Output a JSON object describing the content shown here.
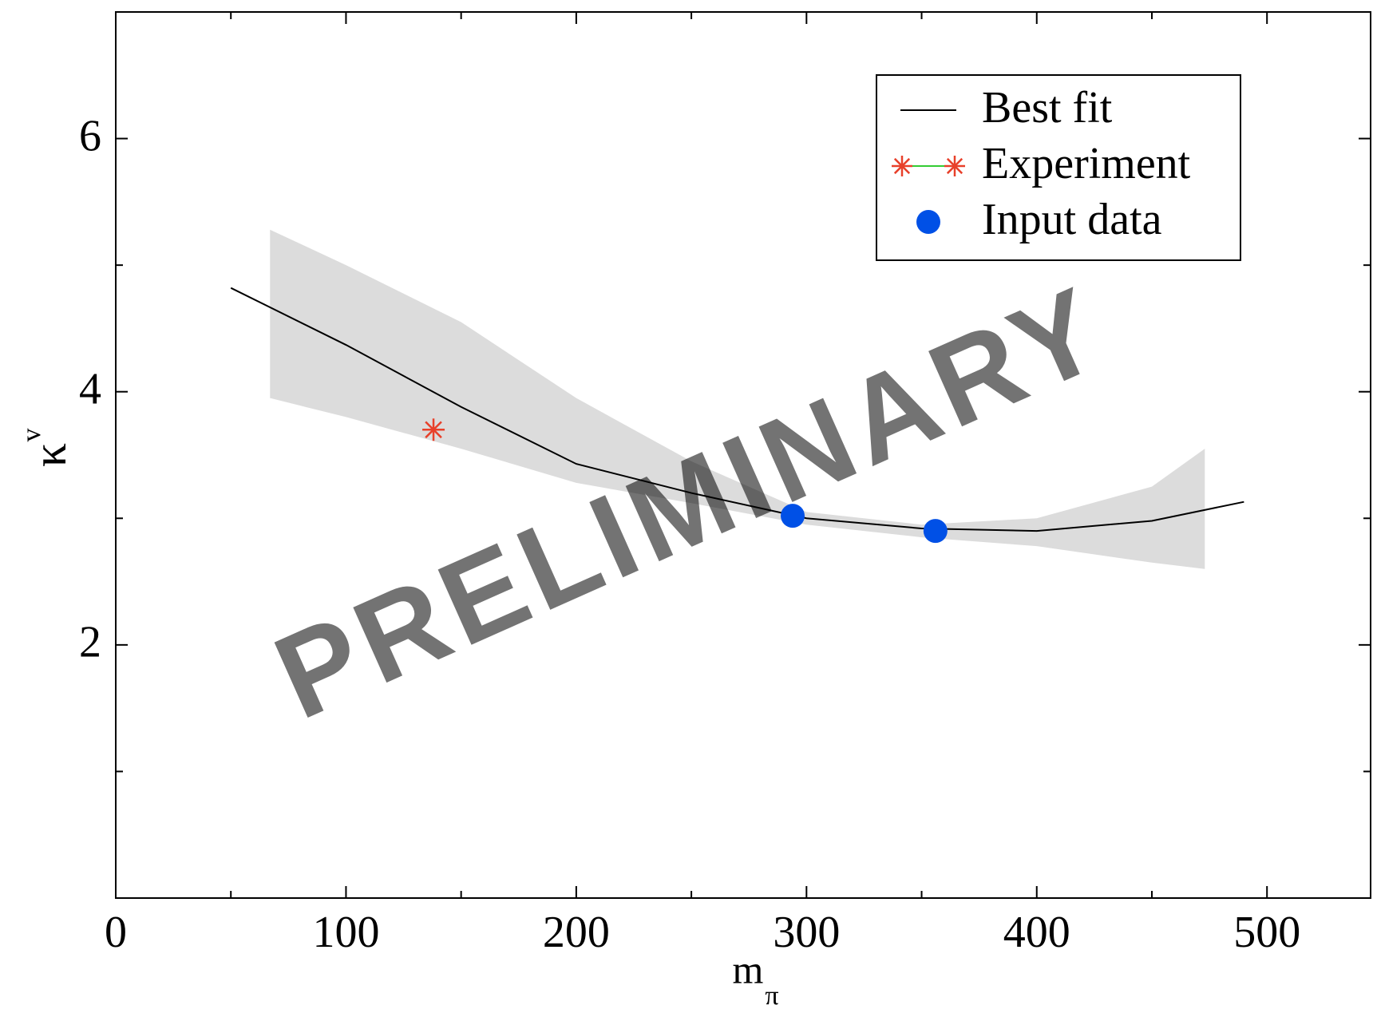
{
  "chart_data": {
    "type": "line",
    "xlabel": "m",
    "xlabel_sub": "π",
    "ylabel": "κ",
    "ylabel_sup": "v",
    "watermark": "PRELIMINARY",
    "xlim": [
      0,
      545
    ],
    "ylim": [
      0,
      7
    ],
    "xticks": [
      0,
      100,
      200,
      300,
      400,
      500
    ],
    "xminor": [
      50,
      150,
      250,
      350,
      450
    ],
    "yticks": [
      2,
      4,
      6
    ],
    "yminor": [
      1,
      3,
      5
    ],
    "legend": "upper right",
    "band": {
      "color": "#dcdcdc",
      "x": [
        67,
        100,
        150,
        200,
        250,
        300,
        350,
        400,
        450,
        473
      ],
      "upper": [
        5.28,
        5.0,
        4.55,
        3.95,
        3.45,
        3.05,
        2.95,
        3.0,
        3.25,
        3.55
      ],
      "lower": [
        3.95,
        3.8,
        3.55,
        3.28,
        3.12,
        2.95,
        2.85,
        2.78,
        2.65,
        2.6
      ]
    },
    "series": [
      {
        "name": "Best fit",
        "color": "#000000",
        "mark": "line",
        "x": [
          50,
          100,
          150,
          200,
          250,
          300,
          350,
          400,
          450,
          490
        ],
        "values": [
          4.82,
          4.37,
          3.88,
          3.43,
          3.2,
          3.0,
          2.92,
          2.9,
          2.98,
          3.13
        ]
      },
      {
        "name": "Experiment",
        "color": "#e8402a",
        "line_color": "#33cc33",
        "mark": "star",
        "x": [
          138
        ],
        "values": [
          3.7
        ]
      },
      {
        "name": "Input data",
        "color": "#0050e6",
        "mark": "circle",
        "x": [
          294,
          356
        ],
        "values": [
          3.02,
          2.9
        ]
      }
    ]
  }
}
